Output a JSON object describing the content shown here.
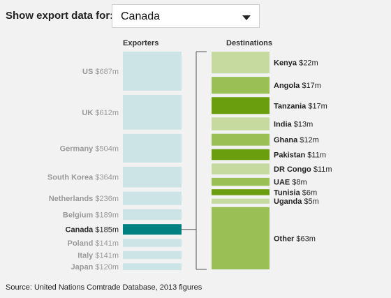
{
  "control": {
    "label": "Show export data for:",
    "selected": "Canada"
  },
  "source": "Source: United Nations Comtrade Database, 2013 figures",
  "chart_data": {
    "type": "bar",
    "exporters": {
      "heading": "Exporters",
      "items": [
        {
          "name": "US",
          "value_label": "$687m",
          "value": 687
        },
        {
          "name": "UK",
          "value_label": "$612m",
          "value": 612
        },
        {
          "name": "Germany",
          "value_label": "$504m",
          "value": 504
        },
        {
          "name": "South Korea",
          "value_label": "$364m",
          "value": 364
        },
        {
          "name": "Netherlands",
          "value_label": "$236m",
          "value": 236
        },
        {
          "name": "Belgium",
          "value_label": "$189m",
          "value": 189
        },
        {
          "name": "Canada",
          "value_label": "$185m",
          "value": 185,
          "highlight": true
        },
        {
          "name": "Poland",
          "value_label": "$141m",
          "value": 141
        },
        {
          "name": "Italy",
          "value_label": "$141m",
          "value": 141
        },
        {
          "name": "Japan",
          "value_label": "$120m",
          "value": 120
        }
      ]
    },
    "destinations": {
      "heading": "Destinations",
      "items": [
        {
          "name": "Kenya",
          "value_label": "$22m",
          "value": 22,
          "shade": "light"
        },
        {
          "name": "Angola",
          "value_label": "$17m",
          "value": 17,
          "shade": "mid"
        },
        {
          "name": "Tanzania",
          "value_label": "$17m",
          "value": 17,
          "shade": "dark"
        },
        {
          "name": "India",
          "value_label": "$13m",
          "value": 13,
          "shade": "light"
        },
        {
          "name": "Ghana",
          "value_label": "$12m",
          "value": 12,
          "shade": "mid"
        },
        {
          "name": "Pakistan",
          "value_label": "$11m",
          "value": 11,
          "shade": "dark"
        },
        {
          "name": "DR Congo",
          "value_label": "$11m",
          "value": 11,
          "shade": "light"
        },
        {
          "name": "UAE",
          "value_label": "$8m",
          "value": 8,
          "shade": "mid"
        },
        {
          "name": "Tunisia",
          "value_label": "$6m",
          "value": 6,
          "shade": "dark"
        },
        {
          "name": "Uganda",
          "value_label": "$5m",
          "value": 5,
          "shade": "light"
        },
        {
          "name": "Other",
          "value_label": "$63m",
          "value": 63,
          "shade": "mid"
        }
      ]
    },
    "colors": {
      "exporter": "#cde4e6",
      "exporter_highlight": "#008080",
      "exporter_label": "#999999",
      "exporter_label_highlight": "#222222",
      "dest_light": "#c6d99e",
      "dest_mid": "#99bf55",
      "dest_dark": "#6a9e0e",
      "bracket": "#555555"
    }
  }
}
